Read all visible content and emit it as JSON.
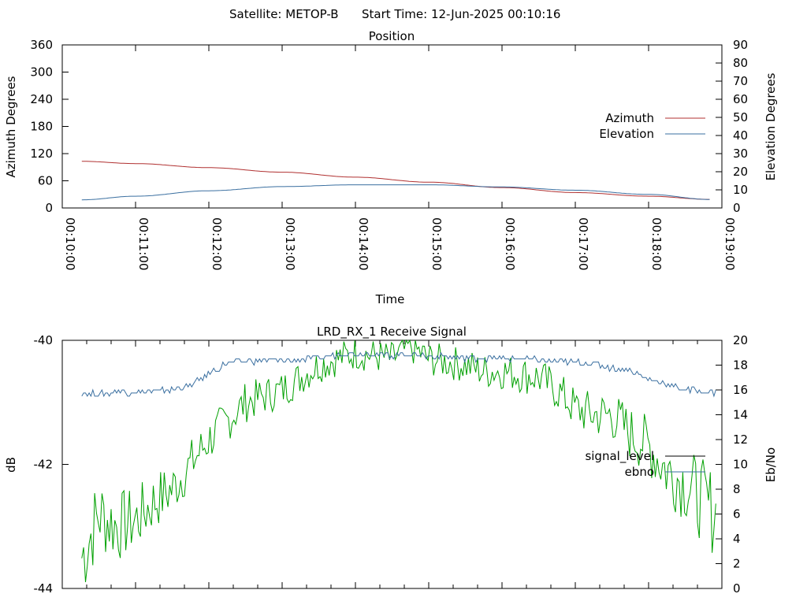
{
  "header": {
    "satellite_label": "Satellite: METOP-B",
    "start_label": "Start Time: 12-Jun-2025 00:10:16"
  },
  "chart_data": [
    {
      "type": "line",
      "title": "Position",
      "xlabel": "Time",
      "ylabel": "Azimuth Degrees",
      "y2label": "Elevation Degrees",
      "x_ticks": [
        "00:10:00",
        "00:11:00",
        "00:12:00",
        "00:13:00",
        "00:14:00",
        "00:15:00",
        "00:16:00",
        "00:17:00",
        "00:18:00",
        "00:19:00"
      ],
      "ylim": [
        0,
        360
      ],
      "yticks": [
        0,
        60,
        120,
        180,
        240,
        300,
        360
      ],
      "y2lim": [
        0,
        90
      ],
      "y2ticks": [
        0,
        10,
        20,
        30,
        40,
        50,
        60,
        70,
        80,
        90
      ],
      "grid": false,
      "legend": "right",
      "series": [
        {
          "name": "Azimuth",
          "axis": "y",
          "color": "#b03030",
          "x": [
            "00:10:16",
            "00:11:00",
            "00:12:00",
            "00:13:00",
            "00:14:00",
            "00:15:00",
            "00:16:00",
            "00:17:00",
            "00:18:00",
            "00:18:50"
          ],
          "values": [
            103,
            98,
            89,
            79,
            68,
            57,
            45,
            34,
            26,
            19
          ]
        },
        {
          "name": "Elevation",
          "axis": "y2",
          "color": "#3a6fa0",
          "x": [
            "00:10:16",
            "00:11:00",
            "00:12:00",
            "00:13:00",
            "00:14:00",
            "00:15:00",
            "00:16:00",
            "00:17:00",
            "00:18:00",
            "00:18:50"
          ],
          "values": [
            4.5,
            6.5,
            9.5,
            11.8,
            12.8,
            12.8,
            11.6,
            9.8,
            7.5,
            4.7
          ]
        }
      ]
    },
    {
      "type": "line",
      "title": "LRD_RX_1 Receive Signal",
      "ylabel": "dB",
      "y2label": "Eb/No",
      "ylim": [
        -44,
        -40
      ],
      "yticks": [
        -44,
        -42,
        -40
      ],
      "y2lim": [
        0,
        20
      ],
      "y2ticks": [
        0,
        2,
        4,
        6,
        8,
        10,
        12,
        14,
        16,
        18,
        20
      ],
      "grid": false,
      "legend": "right",
      "series": [
        {
          "name": "signal_level",
          "axis": "y",
          "color": "#00a000",
          "x": [
            "00:10:16",
            "00:10:30",
            "00:10:45",
            "00:11:00",
            "00:11:15",
            "00:11:30",
            "00:11:45",
            "00:12:00",
            "00:12:15",
            "00:12:30",
            "00:12:45",
            "00:13:00",
            "00:13:15",
            "00:13:30",
            "00:13:45",
            "00:14:00",
            "00:14:15",
            "00:14:30",
            "00:14:45",
            "00:15:00",
            "00:15:15",
            "00:15:30",
            "00:15:45",
            "00:16:00",
            "00:16:15",
            "00:16:30",
            "00:16:45",
            "00:17:00",
            "00:17:15",
            "00:17:30",
            "00:17:45",
            "00:18:00",
            "00:18:15",
            "00:18:30",
            "00:18:45",
            "00:18:55"
          ],
          "values": [
            -43.5,
            -42.8,
            -43.0,
            -42.9,
            -42.6,
            -42.4,
            -42.0,
            -41.6,
            -41.3,
            -41.0,
            -40.9,
            -40.8,
            -40.6,
            -40.4,
            -40.3,
            -40.2,
            -40.25,
            -40.3,
            -40.1,
            -40.3,
            -40.35,
            -40.4,
            -40.5,
            -40.5,
            -40.55,
            -40.6,
            -40.8,
            -41.1,
            -41.2,
            -41.2,
            -41.5,
            -41.7,
            -42.1,
            -42.3,
            -42.6,
            -42.8
          ]
        },
        {
          "name": "ebno",
          "axis": "y2",
          "color": "#3a6fa0",
          "x": [
            "00:10:16",
            "00:10:30",
            "00:10:45",
            "00:11:00",
            "00:11:15",
            "00:11:30",
            "00:11:45",
            "00:12:00",
            "00:12:15",
            "00:12:30",
            "00:12:45",
            "00:13:00",
            "00:13:15",
            "00:13:30",
            "00:13:45",
            "00:14:00",
            "00:14:15",
            "00:14:30",
            "00:14:45",
            "00:15:00",
            "00:15:15",
            "00:15:30",
            "00:15:45",
            "00:16:00",
            "00:16:15",
            "00:16:30",
            "00:16:45",
            "00:17:00",
            "00:17:15",
            "00:17:30",
            "00:17:45",
            "00:18:00",
            "00:18:15",
            "00:18:30",
            "00:18:45",
            "00:18:55"
          ],
          "values": [
            15.8,
            15.6,
            15.9,
            15.8,
            15.9,
            16.0,
            16.4,
            17.3,
            18.2,
            18.3,
            18.4,
            18.3,
            18.5,
            18.6,
            18.9,
            19.0,
            18.9,
            18.8,
            18.9,
            18.7,
            18.7,
            18.6,
            18.6,
            18.5,
            18.5,
            18.4,
            18.3,
            18.2,
            18.1,
            17.8,
            17.6,
            16.8,
            16.5,
            16.0,
            15.9,
            15.8
          ]
        }
      ]
    }
  ]
}
